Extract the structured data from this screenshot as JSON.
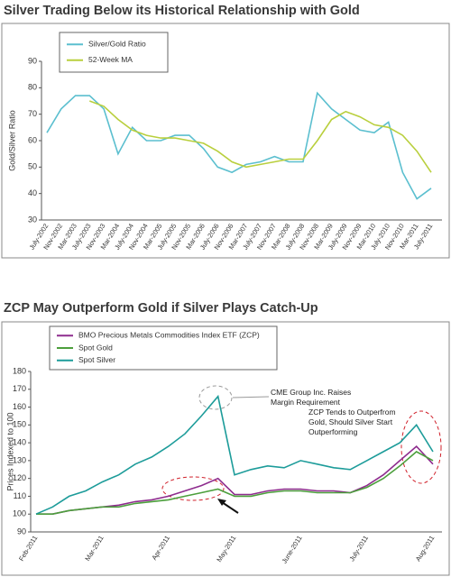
{
  "chart_data": [
    {
      "type": "line",
      "title": "Silver Trading Below its Historical Relationship with Gold",
      "y_label": "Gold/Silver Ratio",
      "categories": [
        "July-2002",
        "Nov-2002",
        "Mar-2003",
        "July-2003",
        "Nov-2003",
        "Mar-2004",
        "July-2004",
        "Nov-2004",
        "Mar-2005",
        "July-2005",
        "Nov-2005",
        "Mar-2006",
        "July-2006",
        "Nov-2006",
        "Mar-2007",
        "July-2007",
        "Nov-2007",
        "Mar-2008",
        "July-2008",
        "Nov-2008",
        "Mar-2009",
        "July-2009",
        "Nov-2009",
        "Mar-2010",
        "July-2010",
        "Nov-2010",
        "Mar-2011",
        "July-2011"
      ],
      "series": [
        {
          "name": "Silver/Gold Ratio",
          "color": "#5bbfcf",
          "values": [
            63,
            72,
            77,
            77,
            72,
            55,
            65,
            60,
            60,
            62,
            62,
            57,
            50,
            48,
            51,
            52,
            54,
            52,
            52,
            78,
            72,
            68,
            64,
            63,
            67,
            48,
            38,
            42
          ]
        },
        {
          "name": "52-Week MA",
          "color": "#b9cf3d",
          "values": [
            null,
            null,
            null,
            75,
            73,
            68,
            64,
            62,
            61,
            61,
            60,
            59,
            56,
            52,
            50,
            51,
            52,
            53,
            53,
            60,
            68,
            71,
            69,
            66,
            65,
            62,
            56,
            48
          ]
        }
      ],
      "ylim": [
        30,
        90
      ],
      "yticks": [
        30,
        40,
        50,
        60,
        70,
        80,
        90
      ],
      "legend": "top-left"
    },
    {
      "type": "line",
      "title": "ZCP May Outperform Gold if Silver Plays Catch-Up",
      "y_label": "Prices Indexed to 100",
      "categories": [
        "Feb-2011",
        null,
        null,
        null,
        "Mar-2011",
        null,
        null,
        null,
        "Apr-2011",
        null,
        null,
        null,
        "May-2011",
        null,
        null,
        null,
        "June-2011",
        null,
        null,
        null,
        "July-2011",
        null,
        null,
        null,
        "Aug-2011"
      ],
      "series": [
        {
          "name": "BMO Precious Metals Commodities Index ETF (ZCP)",
          "color": "#8e2c8e",
          "values": [
            100,
            100,
            102,
            103,
            104,
            105,
            107,
            108,
            110,
            113,
            116,
            120,
            111,
            111,
            113,
            114,
            114,
            113,
            113,
            112,
            116,
            122,
            130,
            138,
            128
          ]
        },
        {
          "name": "Spot Gold",
          "color": "#4c9f3c",
          "values": [
            100,
            100,
            102,
            103,
            104,
            104,
            106,
            107,
            108,
            110,
            112,
            114,
            110,
            110,
            112,
            113,
            113,
            112,
            112,
            112,
            115,
            120,
            127,
            135,
            130
          ]
        },
        {
          "name": "Spot Silver",
          "color": "#1d9c9a",
          "values": [
            100,
            104,
            110,
            113,
            118,
            122,
            128,
            132,
            138,
            145,
            155,
            166,
            122,
            125,
            127,
            126,
            130,
            128,
            126,
            125,
            130,
            135,
            140,
            150,
            135
          ]
        }
      ],
      "annotations": [
        "CME Group Inc. Raises Margin Requirement",
        "ZCP Tends to Outperfrom Gold, Should Silver Start Outperforming"
      ],
      "ylim": [
        90,
        180
      ],
      "yticks": [
        90,
        100,
        110,
        120,
        130,
        140,
        150,
        160,
        170,
        180
      ],
      "legend": "top-left"
    }
  ]
}
